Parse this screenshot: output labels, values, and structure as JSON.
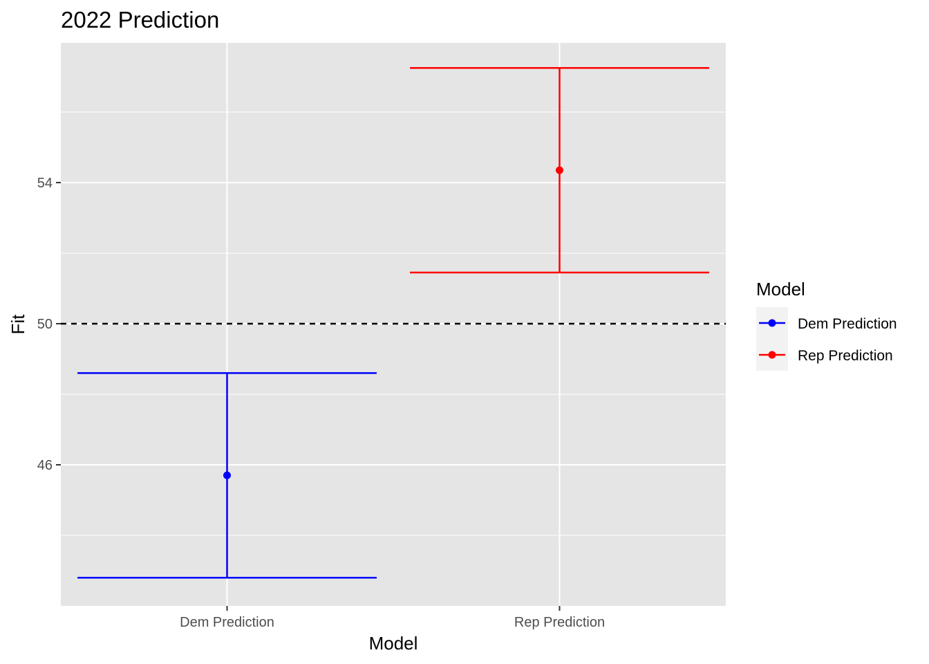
{
  "chart_data": {
    "type": "errorbar",
    "title": "2022 Prediction",
    "xlabel": "Model",
    "ylabel": "Fit",
    "categories": [
      "Dem Prediction",
      "Rep Prediction"
    ],
    "series": [
      {
        "name": "Dem Prediction",
        "color": "#0000FF",
        "fit": 45.7,
        "lower": 42.8,
        "upper": 48.6
      },
      {
        "name": "Rep Prediction",
        "color": "#FF0000",
        "fit": 54.35,
        "lower": 51.45,
        "upper": 57.25
      }
    ],
    "yticks": [
      46,
      50,
      54
    ],
    "ylim": [
      42.0,
      57.96
    ],
    "reference_line": {
      "y": 50,
      "style": "dashed",
      "color": "#000000"
    },
    "legend": {
      "title": "Model",
      "position": "right",
      "entries": [
        "Dem Prediction",
        "Rep Prediction"
      ]
    },
    "grid": true,
    "panel_background": "#E5E5E5"
  }
}
